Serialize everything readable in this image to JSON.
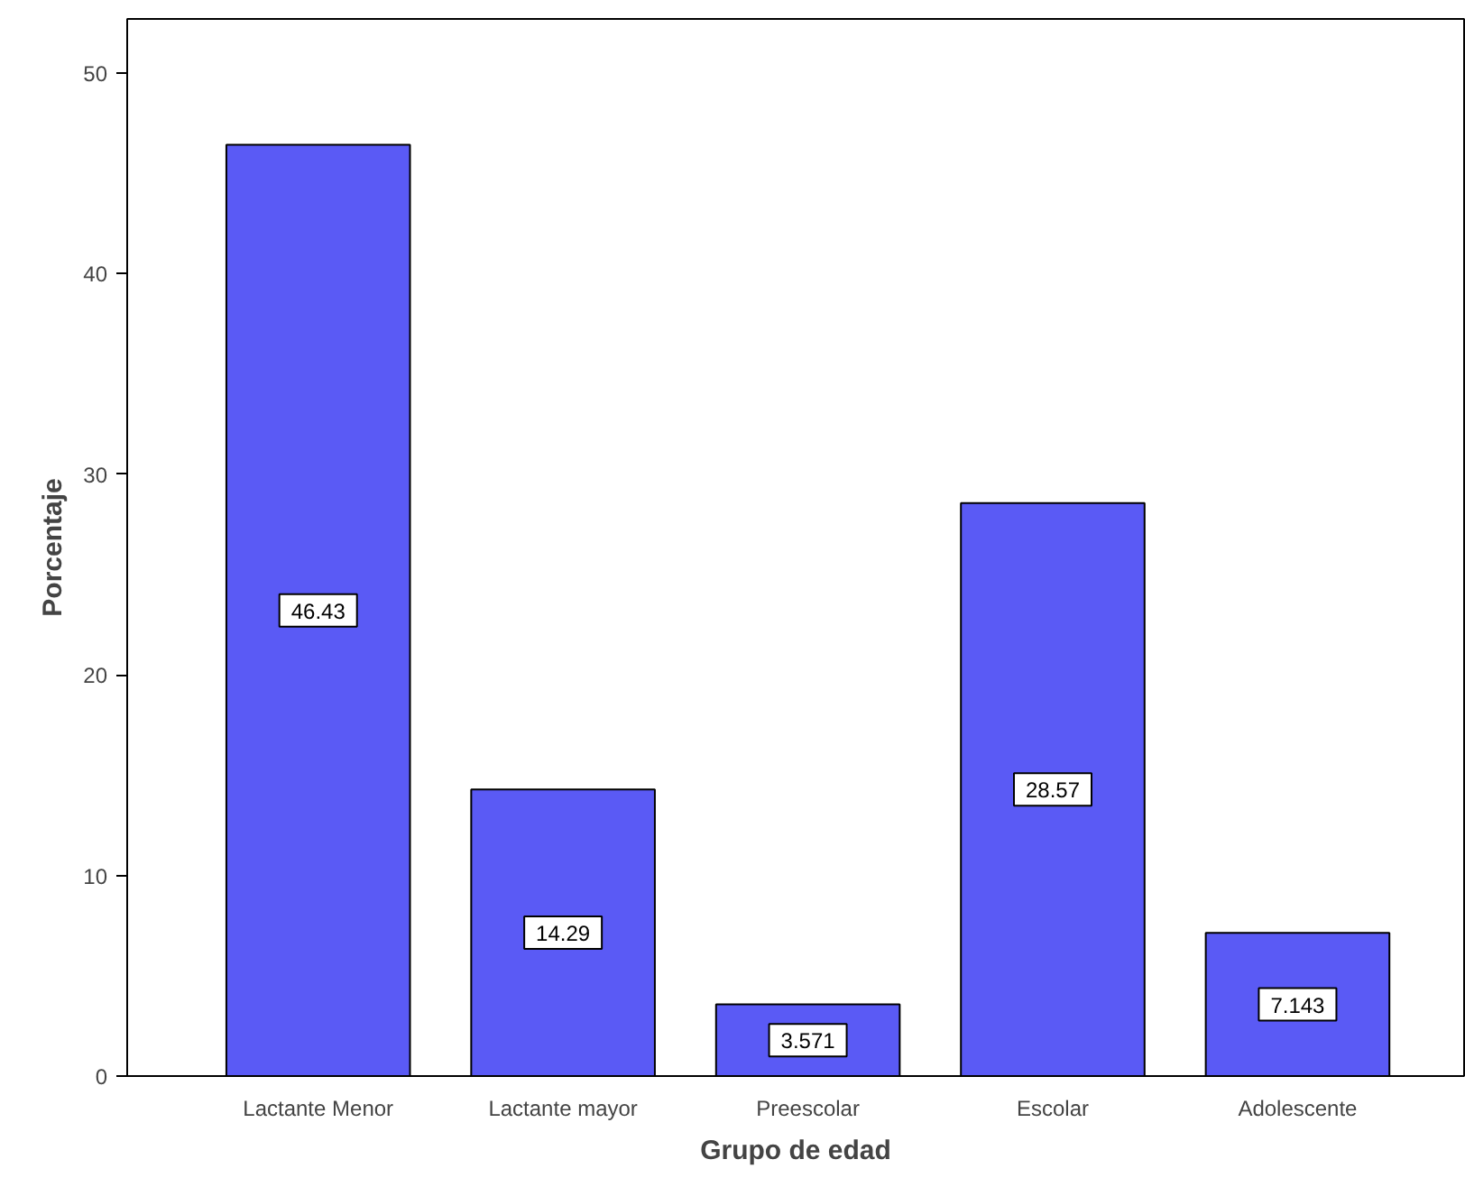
{
  "chart_data": {
    "type": "bar",
    "xlabel": "Grupo de edad",
    "ylabel": "Porcentaje",
    "categories": [
      "Lactante Menor",
      "Lactante mayor",
      "Preescolar",
      "Escolar",
      "Adolescente"
    ],
    "values": [
      46.43,
      14.29,
      3.571,
      28.57,
      7.143
    ],
    "color": "#5a5af5",
    "data_labels": true,
    "grid": false,
    "ylim": [
      0,
      52.7
    ],
    "yticks": [
      0,
      10,
      20,
      30,
      40,
      50
    ]
  }
}
